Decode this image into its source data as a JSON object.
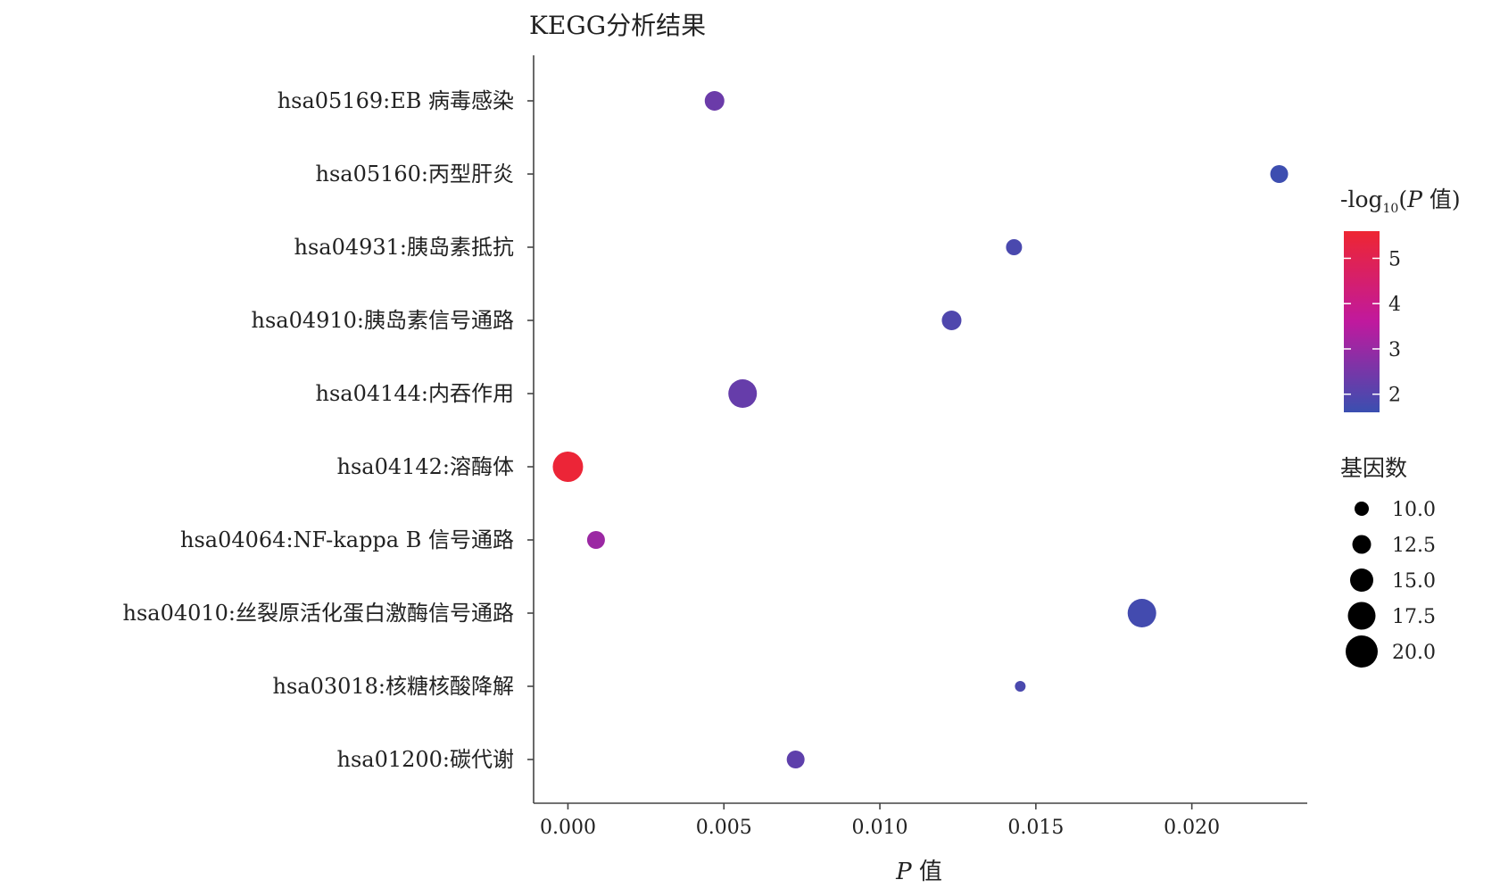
{
  "chart_data": {
    "type": "scatter",
    "title": "KEGG分析结果",
    "xlabel_italic": "P",
    "xlabel_rest": " 值",
    "xlim": [
      -0.0011,
      0.0237
    ],
    "xticks": [
      0.0,
      0.005,
      0.01,
      0.015,
      0.02
    ],
    "xtick_labels": [
      "0.000",
      "0.005",
      "0.010",
      "0.015",
      "0.020"
    ],
    "grid": false,
    "points": [
      {
        "label": "hsa05169:EB 病毒感染",
        "p": 0.0047,
        "count": 13,
        "neglog": 2.33
      },
      {
        "label": "hsa05160:丙型肝炎",
        "p": 0.0228,
        "count": 12,
        "neglog": 1.64
      },
      {
        "label": "hsa04931:胰岛素抵抗",
        "p": 0.0143,
        "count": 11,
        "neglog": 1.84
      },
      {
        "label": "hsa04910:胰岛素信号通路",
        "p": 0.0123,
        "count": 13,
        "neglog": 1.91
      },
      {
        "label": "hsa04144:内吞作用",
        "p": 0.0056,
        "count": 18,
        "neglog": 2.25
      },
      {
        "label": "hsa04142:溶酶体",
        "p": 0.0,
        "count": 19,
        "neglog": 5.5
      },
      {
        "label": "hsa04064:NF-kappa B 信号通路",
        "p": 0.0009,
        "count": 12,
        "neglog": 3.05
      },
      {
        "label": "hsa04010:丝裂原活化蛋白激酶信号通路",
        "p": 0.0184,
        "count": 18,
        "neglog": 1.74
      },
      {
        "label": "hsa03018:核糖核酸降解",
        "p": 0.0145,
        "count": 8,
        "neglog": 1.84
      },
      {
        "label": "hsa01200:碳代谢",
        "p": 0.0073,
        "count": 12,
        "neglog": 2.14
      }
    ],
    "color_legend": {
      "title_prefix": "-log",
      "title_sub": "10",
      "title_open": "(",
      "title_italic": "P",
      "title_suffix": " 值)",
      "range": [
        1.6,
        5.6
      ],
      "ticks": [
        2,
        3,
        4,
        5
      ],
      "colors": [
        "#3a4fb0",
        "#c0199e",
        "#ee2632"
      ]
    },
    "size_legend": {
      "title": "基因数",
      "values": [
        10.0,
        12.5,
        15.0,
        17.5,
        20.0
      ],
      "labels": [
        "10.0",
        "12.5",
        "15.0",
        "17.5",
        "20.0"
      ]
    }
  }
}
